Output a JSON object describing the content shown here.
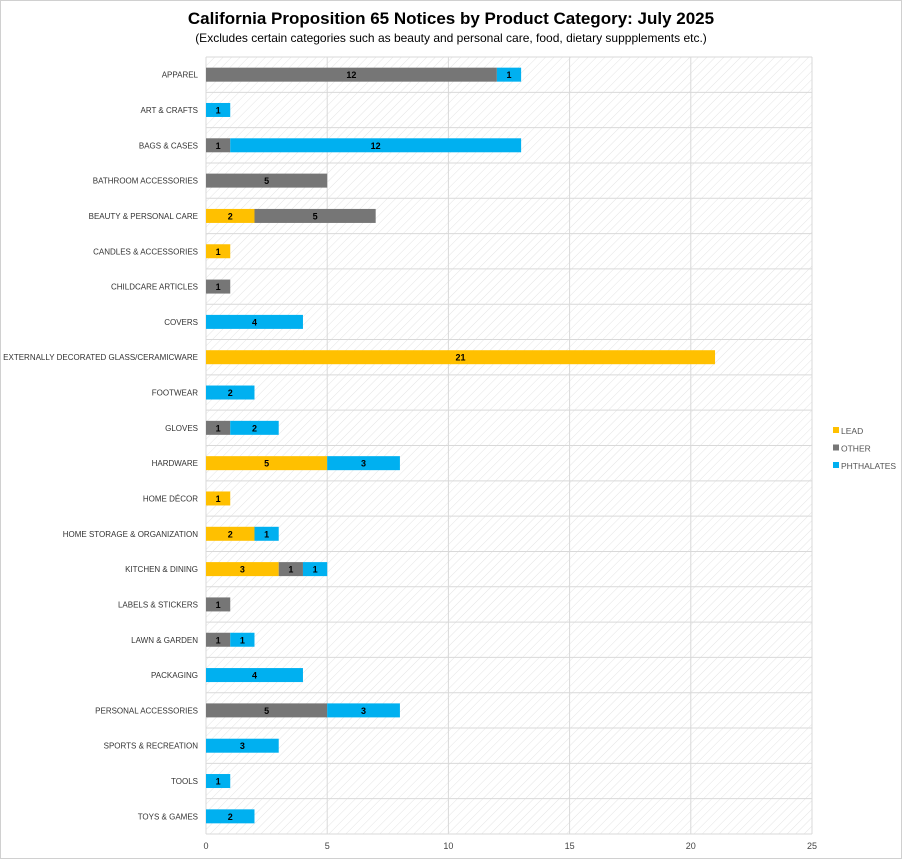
{
  "chart_data": {
    "type": "bar",
    "orientation": "horizontal",
    "stacked": true,
    "title": "California Proposition 65 Notices by Product Category: July 2025",
    "subtitle": "(Excludes certain categories such as beauty and personal care, food, dietary suppplements etc.)",
    "xlim": [
      0,
      25
    ],
    "xticks": [
      0,
      5,
      10,
      15,
      20,
      25
    ],
    "grid": true,
    "legend_position": "right",
    "categories": [
      "APPAREL",
      "ART & CRAFTS",
      "BAGS & CASES",
      "BATHROOM ACCESSORIES",
      "BEAUTY & PERSONAL CARE",
      "CANDLES & ACCESSORIES",
      "CHILDCARE ARTICLES",
      "COVERS",
      "EXTERNALLY DECORATED GLASS/CERAMICWARE",
      "FOOTWEAR",
      "GLOVES",
      "HARDWARE",
      "HOME DÉCOR",
      "HOME STORAGE & ORGANIZATION",
      "KITCHEN & DINING",
      "LABELS & STICKERS",
      "LAWN & GARDEN",
      "PACKAGING",
      "PERSONAL ACCESSORIES",
      "SPORTS & RECREATION",
      "TOOLS",
      "TOYS & GAMES"
    ],
    "series": [
      {
        "name": "LEAD",
        "color": "#FFC000",
        "values": [
          0,
          0,
          0,
          0,
          2,
          1,
          0,
          0,
          21,
          0,
          0,
          5,
          1,
          2,
          3,
          0,
          0,
          0,
          0,
          0,
          0,
          0
        ]
      },
      {
        "name": "OTHER",
        "color": "#767676",
        "values": [
          12,
          0,
          1,
          5,
          5,
          0,
          1,
          0,
          0,
          0,
          1,
          0,
          0,
          0,
          1,
          1,
          1,
          0,
          5,
          0,
          0,
          0
        ]
      },
      {
        "name": "PHTHALATES",
        "color": "#00B0F0",
        "values": [
          1,
          1,
          12,
          0,
          0,
          0,
          0,
          4,
          0,
          2,
          2,
          3,
          0,
          1,
          1,
          0,
          1,
          4,
          3,
          3,
          1,
          2
        ]
      }
    ]
  }
}
